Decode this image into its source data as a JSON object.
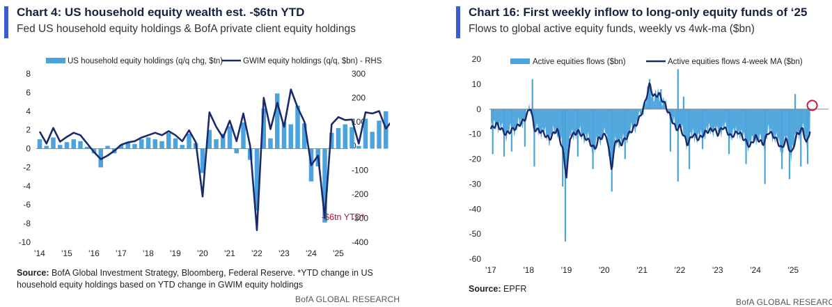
{
  "left": {
    "title": "Chart 4: US household equity wealth est. -$6tn YTD",
    "subtitle": "Fed US household equity holdings & BofA private client equity holdings",
    "source_label": "Source:",
    "source_text": " BofA Global Investment Strategy, Bloomberg, Federal Reserve. *YTD change in US household equity holdings based on YTD change in GWIM equity holdings",
    "footer": "BofA GLOBAL RESEARCH"
  },
  "right": {
    "title": "Chart 16: First weekly inflow to long-only equity funds of ‘25",
    "subtitle": "Flows to global active equity funds, weekly vs 4wk-ma ($bn)",
    "source_label": "Source:",
    "source_text": " EPFR",
    "footer": "BofA GLOBAL RESEARCH"
  },
  "chart_data": [
    {
      "type": "bar+line",
      "title": "Chart 4: US household equity wealth est. -$6tn YTD",
      "legend": [
        "US household equity holdings (q/q chg, $tn)",
        "GWIM equity holdings (q/q, $bn) - RHS"
      ],
      "ylim_left": [
        -10,
        8
      ],
      "ylim_right": [
        -400,
        300
      ],
      "yticks_left": [
        "8",
        "6",
        "4",
        "2",
        "0",
        "-2",
        "-4",
        "-6",
        "-8",
        "-10"
      ],
      "yticks_right": [
        "300",
        "200",
        "100",
        "0",
        "-100",
        "-200",
        "-300",
        "-400"
      ],
      "xticks": [
        "'14",
        "'15",
        "'16",
        "'17",
        "'18",
        "'19",
        "'20",
        "'21",
        "'22",
        "'23",
        "'24",
        "'25"
      ],
      "x_start": 2014.0,
      "x_step": 0.25,
      "bars": [
        1.0,
        0.3,
        1.2,
        0.4,
        0.7,
        1.0,
        0.8,
        0.2,
        -0.5,
        -2.0,
        0.3,
        -0.5,
        0.4,
        0.7,
        0.5,
        1.0,
        1.2,
        1.0,
        0.8,
        1.7,
        1.1,
        0.4,
        1.6,
        0.6,
        -2.6,
        2.0,
        1.0,
        1.6,
        2.4,
        -0.5,
        2.8,
        -1.2,
        -6.6,
        4.3,
        1.1,
        5.9,
        2.8,
        2.6,
        4.6,
        2.7,
        -3.5,
        -1.9,
        -7.9,
        1.7,
        2.2,
        2.6,
        2.3,
        0.3,
        3.2,
        1.8,
        3.0,
        4.0,
        0.5,
        0.2
      ],
      "line": [
        60,
        10,
        75,
        18,
        38,
        55,
        45,
        10,
        -25,
        -55,
        -40,
        -20,
        5,
        15,
        20,
        35,
        45,
        55,
        45,
        62,
        45,
        20,
        65,
        15,
        -210,
        140,
        80,
        35,
        105,
        20,
        135,
        0,
        -350,
        200,
        70,
        180,
        80,
        235,
        160,
        100,
        -80,
        -40,
        -300,
        90,
        120,
        108,
        110,
        10,
        140,
        135,
        145,
        72,
        108,
        55
      ],
      "ytd_point": -225,
      "annotation": "-$6tn YTD*"
    },
    {
      "type": "bar+line",
      "title": "Chart 16: First weekly inflow to long-only equity funds of ‘25",
      "legend": [
        "Active equities flows ($bn)",
        "Active equities flows 4-week MA ($bn)"
      ],
      "ylim": [
        -60,
        20
      ],
      "yticks": [
        "20",
        "10",
        "0",
        "-10",
        "-20",
        "-30",
        "-40",
        "-50",
        "-60"
      ],
      "xticks": [
        "'17",
        "'18",
        "'19",
        "'20",
        "'21",
        "'22",
        "'23",
        "'24",
        "'25"
      ],
      "x_start": 2017.0,
      "ma_knots": [
        [
          2017.0,
          -8
        ],
        [
          2017.15,
          -6
        ],
        [
          2017.4,
          -10
        ],
        [
          2017.7,
          -7
        ],
        [
          2017.9,
          -4
        ],
        [
          2018.05,
          1
        ],
        [
          2018.15,
          -8
        ],
        [
          2018.35,
          -9
        ],
        [
          2018.55,
          -12
        ],
        [
          2018.75,
          -8
        ],
        [
          2018.9,
          -16
        ],
        [
          2019.0,
          -27
        ],
        [
          2019.1,
          -11
        ],
        [
          2019.3,
          -9
        ],
        [
          2019.55,
          -12
        ],
        [
          2019.75,
          -16
        ],
        [
          2019.85,
          -12
        ],
        [
          2020.05,
          -10
        ],
        [
          2020.2,
          -24
        ],
        [
          2020.3,
          -12
        ],
        [
          2020.45,
          -14
        ],
        [
          2020.7,
          -9
        ],
        [
          2020.85,
          -6
        ],
        [
          2020.95,
          -3
        ],
        [
          2021.05,
          1
        ],
        [
          2021.2,
          10
        ],
        [
          2021.3,
          5
        ],
        [
          2021.45,
          6
        ],
        [
          2021.6,
          2
        ],
        [
          2021.75,
          -3
        ],
        [
          2021.9,
          -8
        ],
        [
          2022.0,
          -7
        ],
        [
          2022.2,
          -14
        ],
        [
          2022.35,
          -10
        ],
        [
          2022.5,
          -12
        ],
        [
          2022.7,
          -9
        ],
        [
          2022.9,
          -8
        ],
        [
          2023.0,
          -10
        ],
        [
          2023.15,
          -7
        ],
        [
          2023.35,
          -11
        ],
        [
          2023.55,
          -9
        ],
        [
          2023.7,
          -12
        ],
        [
          2023.85,
          -15
        ],
        [
          2024.0,
          -11
        ],
        [
          2024.2,
          -14
        ],
        [
          2024.35,
          -9
        ],
        [
          2024.5,
          -11
        ],
        [
          2024.7,
          -16
        ],
        [
          2024.8,
          -12
        ],
        [
          2024.95,
          -18
        ],
        [
          2025.1,
          -10
        ],
        [
          2025.25,
          -8
        ],
        [
          2025.35,
          -14
        ],
        [
          2025.45,
          -8
        ]
      ],
      "spikes_down": [
        [
          2017.05,
          -18
        ],
        [
          2017.35,
          -19
        ],
        [
          2017.55,
          -17
        ],
        [
          2017.9,
          -15
        ],
        [
          2018.15,
          -23
        ],
        [
          2018.9,
          -31
        ],
        [
          2018.97,
          -53
        ],
        [
          2019.3,
          -19
        ],
        [
          2019.7,
          -24
        ],
        [
          2020.2,
          -33
        ],
        [
          2020.55,
          -20
        ],
        [
          2021.75,
          -17
        ],
        [
          2021.95,
          -29
        ],
        [
          2022.25,
          -24
        ],
        [
          2022.6,
          -16
        ],
        [
          2023.3,
          -18
        ],
        [
          2023.75,
          -22
        ],
        [
          2024.25,
          -30
        ],
        [
          2024.7,
          -24
        ],
        [
          2024.9,
          -28
        ],
        [
          2025.2,
          -23
        ],
        [
          2025.38,
          -22
        ]
      ],
      "spikes_up": [
        [
          2018.1,
          12
        ],
        [
          2021.2,
          12
        ],
        [
          2021.5,
          8
        ],
        [
          2021.95,
          16
        ],
        [
          2022.1,
          5
        ],
        [
          2025.05,
          6
        ]
      ],
      "highlight_circle": "latest inflow near 0"
    }
  ]
}
